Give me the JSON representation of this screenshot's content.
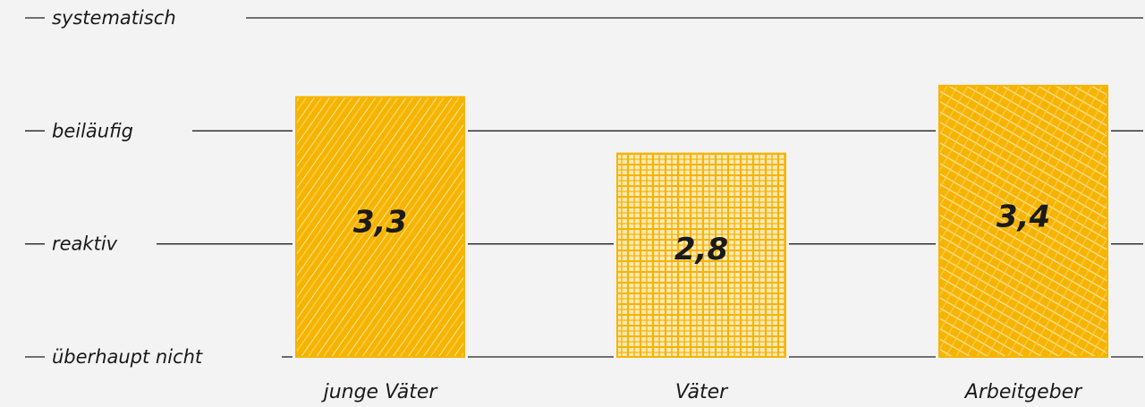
{
  "chart_data": {
    "type": "bar",
    "categories": [
      "junge Väter",
      "Väter",
      "Arbeitgeber"
    ],
    "values": [
      3.3,
      2.8,
      3.4
    ],
    "value_labels": [
      "3,3",
      "2,8",
      "3,4"
    ],
    "y_levels": [
      {
        "value": 1,
        "label": "überhaupt nicht"
      },
      {
        "value": 2,
        "label": "reaktiv"
      },
      {
        "value": 3,
        "label": "beiläufig"
      },
      {
        "value": 4,
        "label": "systematisch"
      }
    ],
    "ylim": [
      1,
      4
    ],
    "grid": true,
    "title": "",
    "xlabel": "",
    "ylabel": "",
    "colors": {
      "bar": "#f6b400",
      "bar_light": "#fbd86a",
      "grid": "#222222",
      "background": "#f3f3f3"
    },
    "bar_fill_styles": [
      "diagonal-hatch",
      "cross-grid",
      "cross-hatch"
    ]
  }
}
